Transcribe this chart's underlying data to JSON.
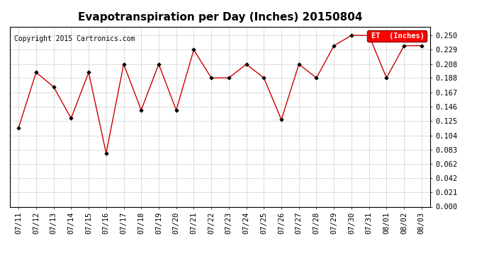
{
  "title": "Evapotranspiration per Day (Inches) 20150804",
  "copyright": "Copyright 2015 Cartronics.com",
  "legend_label": "ET  (Inches)",
  "x_labels": [
    "07/11",
    "07/12",
    "07/13",
    "07/14",
    "07/15",
    "07/16",
    "07/17",
    "07/18",
    "07/19",
    "07/20",
    "07/21",
    "07/22",
    "07/23",
    "07/24",
    "07/25",
    "07/26",
    "07/27",
    "07/28",
    "07/29",
    "07/30",
    "07/31",
    "08/01",
    "08/02",
    "08/03"
  ],
  "y_values": [
    0.115,
    0.196,
    0.175,
    0.129,
    0.196,
    0.078,
    0.208,
    0.141,
    0.208,
    0.141,
    0.229,
    0.188,
    0.188,
    0.208,
    0.188,
    0.127,
    0.208,
    0.188,
    0.235,
    0.25,
    0.25,
    0.188,
    0.235,
    0.235
  ],
  "ylim": [
    0.0,
    0.263
  ],
  "yticks": [
    0.0,
    0.021,
    0.042,
    0.062,
    0.083,
    0.104,
    0.125,
    0.146,
    0.167,
    0.188,
    0.208,
    0.229,
    0.25
  ],
  "line_color": "#cc0000",
  "marker_color": "#000000",
  "background_color": "#ffffff",
  "grid_color": "#bbbbbb",
  "title_fontsize": 11,
  "tick_fontsize": 7.5,
  "copyright_fontsize": 7
}
